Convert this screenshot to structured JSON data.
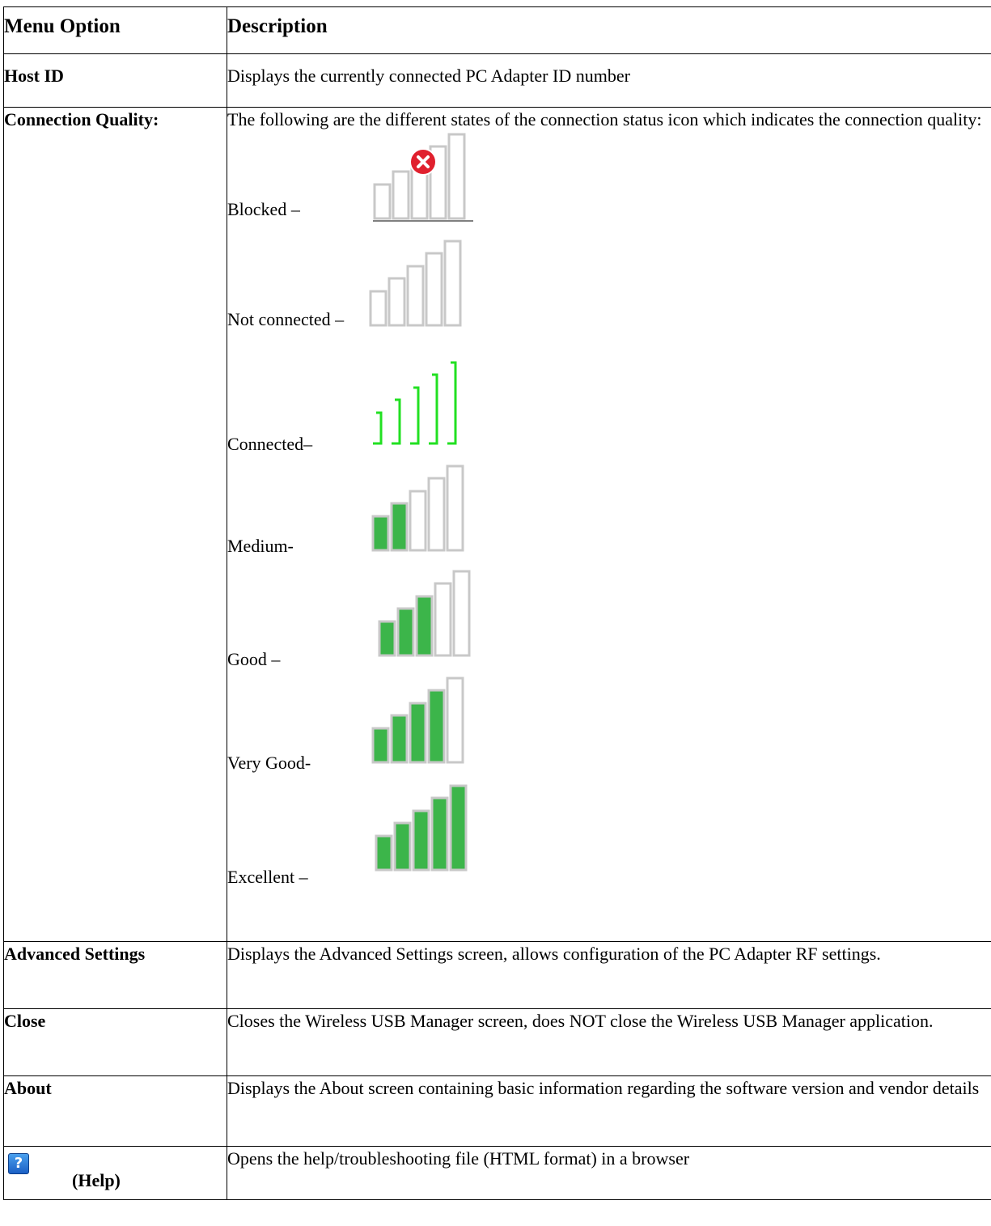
{
  "table": {
    "header": {
      "col1": "Menu Option",
      "col2": "Description"
    },
    "host_id": {
      "option": "Host ID",
      "description": "Displays the currently connected PC Adapter ID number"
    },
    "connection_quality": {
      "option": "Connection Quality:",
      "description": "The following are the different states of the connection status icon which indicates the connection quality:",
      "states": [
        {
          "label": "Blocked –",
          "icon": "signal-blocked-icon",
          "filled_bars": 0
        },
        {
          "label": "Not connected –",
          "icon": "signal-not-connected-icon",
          "filled_bars": 0
        },
        {
          "label": "Connected–",
          "icon": "signal-connected-icon",
          "filled_bars": 0
        },
        {
          "label": "Medium-",
          "icon": "signal-medium-icon",
          "filled_bars": 2
        },
        {
          "label": "Good –",
          "icon": "signal-good-icon",
          "filled_bars": 3
        },
        {
          "label": "Very Good-",
          "icon": "signal-very-good-icon",
          "filled_bars": 4
        },
        {
          "label": "Excellent –",
          "icon": "signal-excellent-icon",
          "filled_bars": 5
        }
      ]
    },
    "advanced_settings": {
      "option": "Advanced Settings",
      "description": "Displays the Advanced Settings screen, allows configuration of the PC Adapter RF settings."
    },
    "close": {
      "option": "Close",
      "description": "Closes the Wireless USB Manager screen, does NOT close the Wireless USB Manager application."
    },
    "about": {
      "option": "About",
      "description": "Displays the About screen containing basic information regarding the software version and vendor details"
    },
    "help": {
      "option": "(Help)",
      "icon": "help-icon",
      "icon_glyph": "?",
      "description": "Opens the help/troubleshooting file (HTML format) in a browser"
    }
  },
  "colors": {
    "bar_fill": "#3cb54a",
    "bar_border": "#c8c8c8",
    "connected_green": "#22e022",
    "blocked_red": "#e0202e"
  }
}
